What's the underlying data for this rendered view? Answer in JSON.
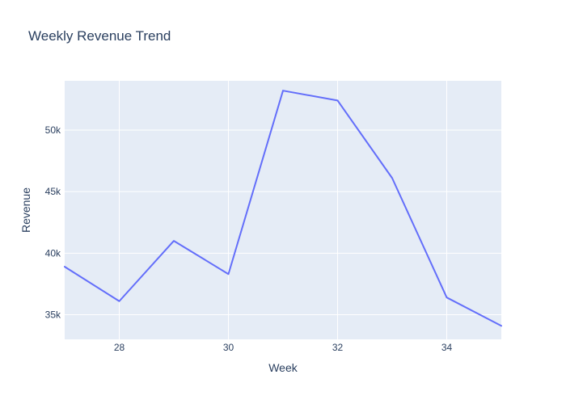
{
  "chart_data": {
    "type": "line",
    "title": "Weekly Revenue Trend",
    "xlabel": "Week",
    "ylabel": "Revenue",
    "x": [
      27,
      28,
      29,
      30,
      31,
      32,
      33,
      34,
      35
    ],
    "series": [
      {
        "values": [
          38900,
          36100,
          41000,
          38300,
          53200,
          52400,
          46100,
          36400,
          34100
        ],
        "color": "#636efa"
      }
    ],
    "xlim": [
      27,
      35
    ],
    "ylim": [
      33000,
      54000
    ],
    "x_ticks": [
      28,
      30,
      32,
      34
    ],
    "x_tick_labels": [
      "28",
      "30",
      "32",
      "34"
    ],
    "y_ticks": [
      35000,
      40000,
      45000,
      50000
    ],
    "y_tick_labels": [
      "35k",
      "40k",
      "45k",
      "50k"
    ],
    "grid": true,
    "plot_background": "#e5ecf6",
    "grid_color": "#ffffff",
    "text_color": "#2a3f5f"
  }
}
